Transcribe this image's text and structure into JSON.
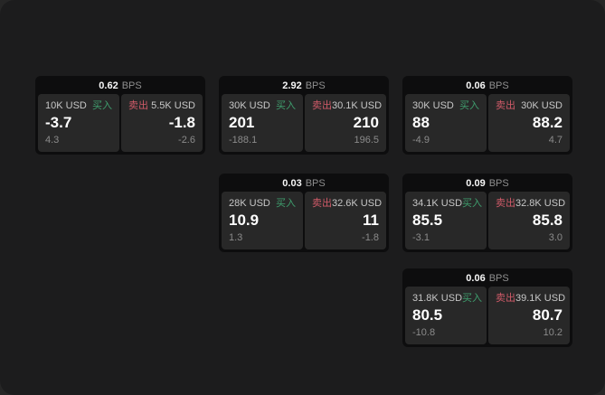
{
  "labels": {
    "buy": "买入",
    "sell": "卖出",
    "bps_unit": "BPS"
  },
  "colors": {
    "buy_green": "#3f9e6e",
    "sell_red": "#cf5a68",
    "card_bg": "#0d0d0e",
    "panel_bg": "#282828",
    "window_bg": "#1c1c1d"
  },
  "cards": [
    {
      "bps": "0.62",
      "buy": {
        "amount": "10K USD",
        "price": "-3.7",
        "delta": "4.3"
      },
      "sell": {
        "amount": "5.5K USD",
        "price": "-1.8",
        "delta": "-2.6"
      }
    },
    {
      "bps": "2.92",
      "buy": {
        "amount": "30K USD",
        "price": "201",
        "delta": "-188.1"
      },
      "sell": {
        "amount": "30.1K USD",
        "price": "210",
        "delta": "196.5"
      }
    },
    {
      "bps": "0.06",
      "buy": {
        "amount": "30K USD",
        "price": "88",
        "delta": "-4.9"
      },
      "sell": {
        "amount": "30K USD",
        "price": "88.2",
        "delta": "4.7"
      }
    },
    {
      "bps": "0.03",
      "buy": {
        "amount": "28K USD",
        "price": "10.9",
        "delta": "1.3"
      },
      "sell": {
        "amount": "32.6K USD",
        "price": "11",
        "delta": "-1.8"
      }
    },
    {
      "bps": "0.09",
      "buy": {
        "amount": "34.1K USD",
        "price": "85.5",
        "delta": "-3.1"
      },
      "sell": {
        "amount": "32.8K USD",
        "price": "85.8",
        "delta": "3.0"
      }
    },
    {
      "bps": "0.06",
      "buy": {
        "amount": "31.8K USD",
        "price": "80.5",
        "delta": "-10.8"
      },
      "sell": {
        "amount": "39.1K USD",
        "price": "80.7",
        "delta": "10.2"
      }
    }
  ]
}
